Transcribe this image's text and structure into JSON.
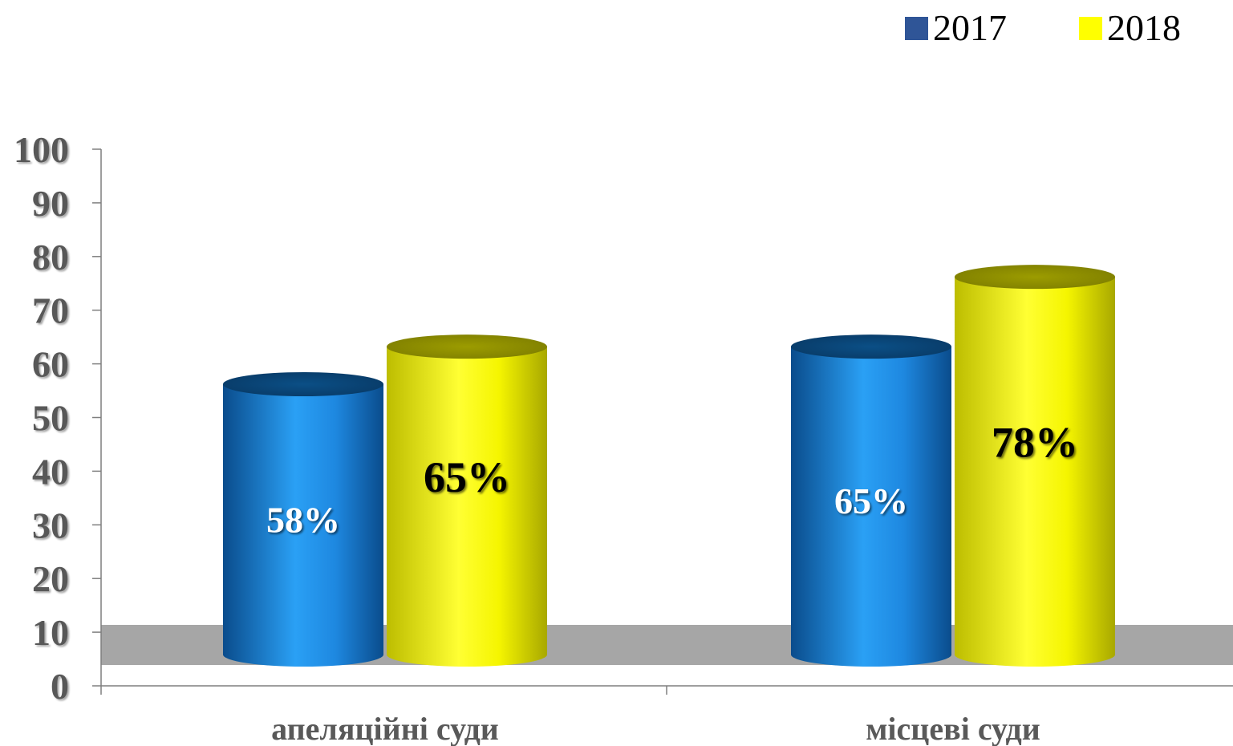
{
  "chart_data": {
    "type": "bar",
    "categories": [
      "апеляційні суди",
      "місцеві суди"
    ],
    "series": [
      {
        "name": "2017",
        "values": [
          58,
          65
        ],
        "labels": [
          "58%",
          "65%"
        ],
        "color": "#1E7FD6",
        "label_color": "#ffffff"
      },
      {
        "name": "2018",
        "values": [
          65,
          78
        ],
        "labels": [
          "65%",
          "78%"
        ],
        "color": "#FFFF00",
        "label_color": "#000000"
      }
    ],
    "yticks": [
      "0",
      "10",
      "20",
      "30",
      "40",
      "50",
      "60",
      "70",
      "80",
      "90",
      "100"
    ],
    "ylim": [
      0,
      100
    ],
    "legend_position": "top-right",
    "floor_color": "#A6A6A6"
  }
}
